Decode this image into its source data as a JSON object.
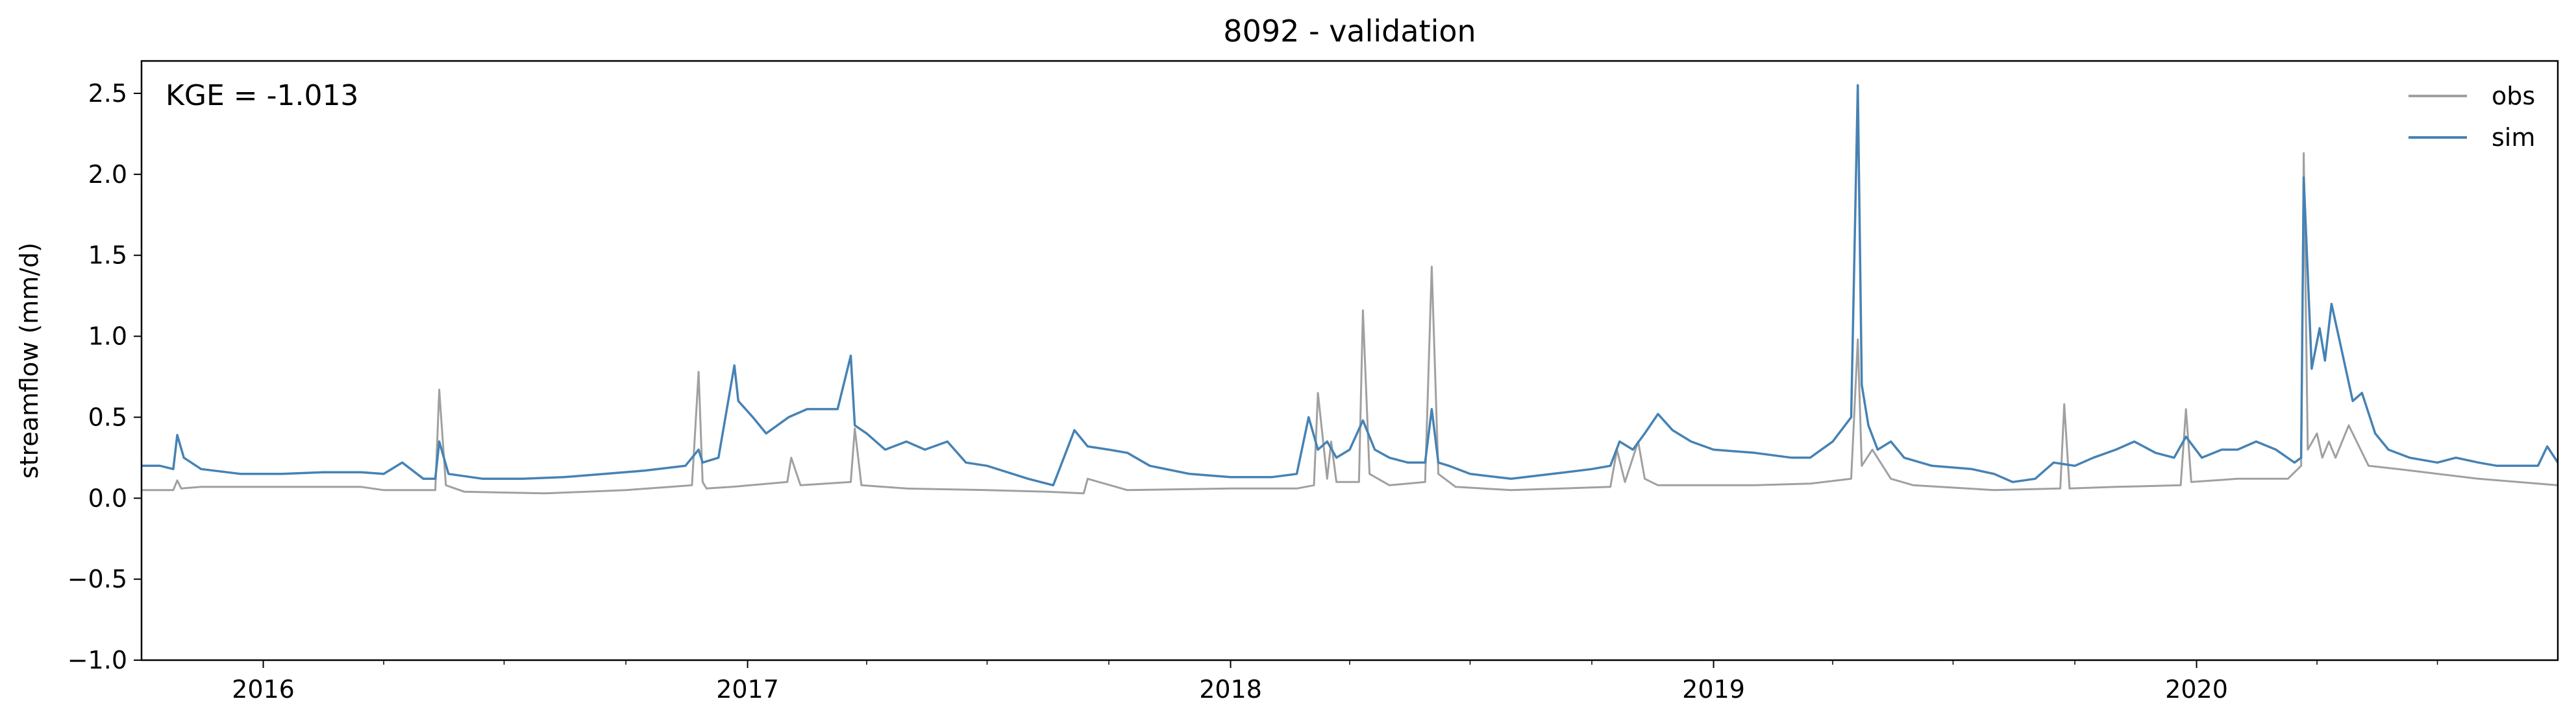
{
  "chart_data": {
    "type": "line",
    "title": "8092 - validation",
    "xlabel": "",
    "ylabel": "streamflow (mm/d)",
    "annotation": "KGE = -1.013",
    "ylim": [
      -1.0,
      2.7
    ],
    "xlim": [
      "2015-10-01",
      "2020-09-30"
    ],
    "yticks": [
      -1.0,
      -0.5,
      0.0,
      0.5,
      1.0,
      1.5,
      2.0,
      2.5
    ],
    "ytick_labels": [
      "−1.0",
      "−0.5",
      "0.0",
      "0.5",
      "1.0",
      "1.5",
      "2.0",
      "2.5"
    ],
    "xticks": [
      "2016-01-01",
      "2017-01-01",
      "2018-01-01",
      "2019-01-01",
      "2020-01-01"
    ],
    "xtick_labels": [
      "2016",
      "2017",
      "2018",
      "2019",
      "2020"
    ],
    "legend_position": "top-right",
    "grid": false,
    "series": [
      {
        "name": "obs",
        "color": "#a0a0a0",
        "x": [
          "2015-10-01",
          "2015-10-25",
          "2015-10-28",
          "2015-10-31",
          "2015-11-15",
          "2016-01-01",
          "2016-03-15",
          "2016-04-01",
          "2016-05-10",
          "2016-05-13",
          "2016-05-18",
          "2016-06-01",
          "2016-08-01",
          "2016-10-01",
          "2016-11-20",
          "2016-11-25",
          "2016-11-28",
          "2016-12-01",
          "2016-12-20",
          "2017-01-31",
          "2017-02-03",
          "2017-02-10",
          "2017-03-20",
          "2017-03-23",
          "2017-03-28",
          "2017-05-01",
          "2017-07-01",
          "2017-08-15",
          "2017-09-12",
          "2017-09-15",
          "2017-10-15",
          "2018-01-01",
          "2018-02-20",
          "2018-03-05",
          "2018-03-08",
          "2018-03-15",
          "2018-03-18",
          "2018-03-22",
          "2018-04-08",
          "2018-04-11",
          "2018-04-16",
          "2018-05-01",
          "2018-05-28",
          "2018-06-02",
          "2018-06-07",
          "2018-06-20",
          "2018-08-01",
          "2018-10-15",
          "2018-10-20",
          "2018-10-26",
          "2018-11-05",
          "2018-11-10",
          "2018-11-20",
          "2018-12-20",
          "2019-02-01",
          "2019-03-15",
          "2019-04-15",
          "2019-04-20",
          "2019-04-23",
          "2019-05-01",
          "2019-05-15",
          "2019-06-01",
          "2019-08-01",
          "2019-09-20",
          "2019-09-23",
          "2019-09-27",
          "2019-11-01",
          "2019-12-20",
          "2019-12-24",
          "2019-12-28",
          "2020-02-01",
          "2020-03-10",
          "2020-03-20",
          "2020-03-22",
          "2020-03-25",
          "2020-04-01",
          "2020-04-05",
          "2020-04-10",
          "2020-04-15",
          "2020-04-25",
          "2020-05-10",
          "2020-06-01",
          "2020-08-01",
          "2020-09-30"
        ],
        "y": [
          0.05,
          0.05,
          0.11,
          0.06,
          0.07,
          0.07,
          0.07,
          0.05,
          0.05,
          0.67,
          0.08,
          0.04,
          0.03,
          0.05,
          0.08,
          0.78,
          0.1,
          0.06,
          0.07,
          0.1,
          0.25,
          0.08,
          0.1,
          0.43,
          0.08,
          0.06,
          0.05,
          0.04,
          0.03,
          0.12,
          0.05,
          0.06,
          0.06,
          0.08,
          0.65,
          0.12,
          0.35,
          0.1,
          0.1,
          1.16,
          0.15,
          0.08,
          0.1,
          1.43,
          0.15,
          0.07,
          0.05,
          0.07,
          0.3,
          0.1,
          0.35,
          0.12,
          0.08,
          0.08,
          0.08,
          0.09,
          0.12,
          0.98,
          0.2,
          0.3,
          0.12,
          0.08,
          0.05,
          0.06,
          0.58,
          0.06,
          0.07,
          0.08,
          0.55,
          0.1,
          0.12,
          0.12,
          0.2,
          2.13,
          0.3,
          0.4,
          0.25,
          0.35,
          0.25,
          0.45,
          0.2,
          0.18,
          0.12,
          0.08
        ]
      },
      {
        "name": "sim",
        "color": "#4682b4",
        "x": [
          "2015-10-01",
          "2015-10-15",
          "2015-10-25",
          "2015-10-28",
          "2015-11-02",
          "2015-11-15",
          "2015-12-15",
          "2016-01-15",
          "2016-02-15",
          "2016-03-15",
          "2016-04-01",
          "2016-04-15",
          "2016-05-01",
          "2016-05-10",
          "2016-05-13",
          "2016-05-20",
          "2016-06-15",
          "2016-07-15",
          "2016-08-15",
          "2016-09-15",
          "2016-10-15",
          "2016-11-15",
          "2016-11-25",
          "2016-11-28",
          "2016-12-10",
          "2016-12-22",
          "2016-12-25",
          "2017-01-05",
          "2017-01-15",
          "2017-02-01",
          "2017-02-15",
          "2017-03-01",
          "2017-03-10",
          "2017-03-20",
          "2017-03-23",
          "2017-04-01",
          "2017-04-15",
          "2017-05-01",
          "2017-05-15",
          "2017-06-01",
          "2017-06-15",
          "2017-07-01",
          "2017-08-01",
          "2017-08-20",
          "2017-09-05",
          "2017-09-15",
          "2017-10-01",
          "2017-10-15",
          "2017-11-01",
          "2017-12-01",
          "2018-01-01",
          "2018-02-01",
          "2018-02-20",
          "2018-03-01",
          "2018-03-08",
          "2018-03-15",
          "2018-03-22",
          "2018-04-01",
          "2018-04-11",
          "2018-04-20",
          "2018-05-01",
          "2018-05-15",
          "2018-05-28",
          "2018-06-02",
          "2018-06-07",
          "2018-06-15",
          "2018-07-01",
          "2018-08-01",
          "2018-09-01",
          "2018-10-01",
          "2018-10-15",
          "2018-10-22",
          "2018-11-01",
          "2018-11-10",
          "2018-11-20",
          "2018-12-01",
          "2018-12-15",
          "2019-01-01",
          "2019-02-01",
          "2019-03-01",
          "2019-03-15",
          "2019-04-01",
          "2019-04-15",
          "2019-04-20",
          "2019-04-23",
          "2019-04-28",
          "2019-05-05",
          "2019-05-15",
          "2019-05-25",
          "2019-06-15",
          "2019-07-15",
          "2019-08-01",
          "2019-08-15",
          "2019-09-01",
          "2019-09-15",
          "2019-10-01",
          "2019-10-15",
          "2019-11-01",
          "2019-11-15",
          "2019-12-01",
          "2019-12-15",
          "2019-12-24",
          "2020-01-05",
          "2020-01-20",
          "2020-02-01",
          "2020-02-15",
          "2020-03-01",
          "2020-03-15",
          "2020-03-20",
          "2020-03-22",
          "2020-03-28",
          "2020-04-03",
          "2020-04-07",
          "2020-04-12",
          "2020-04-20",
          "2020-04-28",
          "2020-05-05",
          "2020-05-15",
          "2020-05-25",
          "2020-06-10",
          "2020-07-01",
          "2020-07-15",
          "2020-08-01",
          "2020-08-15",
          "2020-09-01",
          "2020-09-15",
          "2020-09-22",
          "2020-09-30"
        ],
        "y": [
          0.2,
          0.2,
          0.18,
          0.39,
          0.25,
          0.18,
          0.15,
          0.15,
          0.16,
          0.16,
          0.15,
          0.22,
          0.12,
          0.12,
          0.35,
          0.15,
          0.12,
          0.12,
          0.13,
          0.15,
          0.17,
          0.2,
          0.3,
          0.22,
          0.25,
          0.82,
          0.6,
          0.5,
          0.4,
          0.5,
          0.55,
          0.55,
          0.55,
          0.88,
          0.45,
          0.4,
          0.3,
          0.35,
          0.3,
          0.35,
          0.22,
          0.2,
          0.12,
          0.08,
          0.42,
          0.32,
          0.3,
          0.28,
          0.2,
          0.15,
          0.13,
          0.13,
          0.15,
          0.5,
          0.3,
          0.35,
          0.25,
          0.3,
          0.48,
          0.3,
          0.25,
          0.22,
          0.22,
          0.55,
          0.22,
          0.2,
          0.15,
          0.12,
          0.15,
          0.18,
          0.2,
          0.35,
          0.3,
          0.4,
          0.52,
          0.42,
          0.35,
          0.3,
          0.28,
          0.25,
          0.25,
          0.35,
          0.5,
          2.55,
          0.7,
          0.45,
          0.3,
          0.35,
          0.25,
          0.2,
          0.18,
          0.15,
          0.1,
          0.12,
          0.22,
          0.2,
          0.25,
          0.3,
          0.35,
          0.28,
          0.25,
          0.38,
          0.25,
          0.3,
          0.3,
          0.35,
          0.3,
          0.22,
          0.25,
          1.98,
          0.8,
          1.05,
          0.85,
          1.2,
          0.9,
          0.6,
          0.65,
          0.4,
          0.3,
          0.25,
          0.22,
          0.25,
          0.22,
          0.2,
          0.2,
          0.2,
          0.32,
          0.22
        ]
      }
    ]
  }
}
